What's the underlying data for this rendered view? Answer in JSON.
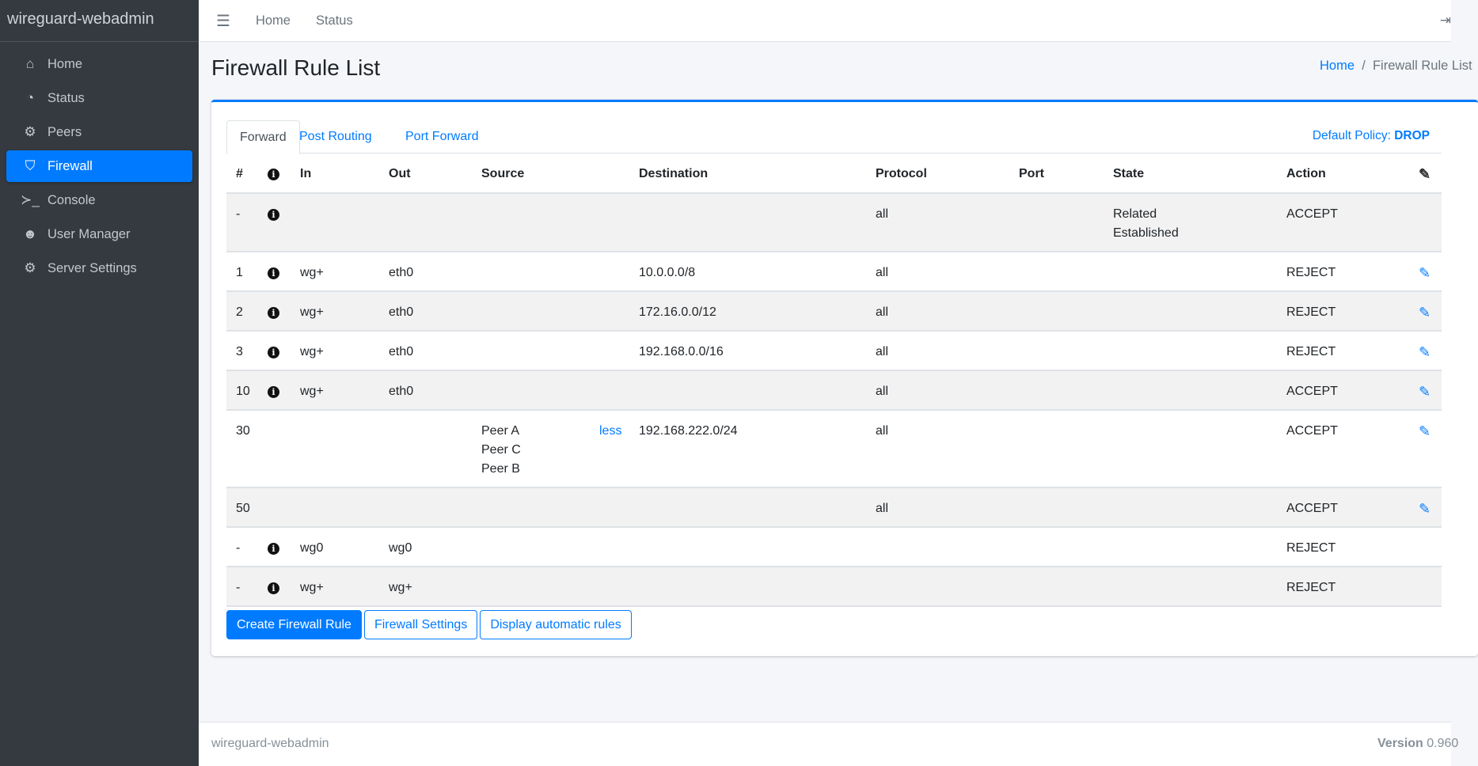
{
  "brand": "wireguard-webadmin",
  "sidebar": {
    "items": [
      {
        "label": "Home",
        "icon": "home-icon",
        "glyph": "⌂"
      },
      {
        "label": "Status",
        "icon": "gauge-icon",
        "glyph": "◔"
      },
      {
        "label": "Peers",
        "icon": "users-cog-icon",
        "glyph": "⚙"
      },
      {
        "label": "Firewall",
        "icon": "shield-icon",
        "glyph": "⛉",
        "active": true
      },
      {
        "label": "Console",
        "icon": "terminal-icon",
        "glyph": "≻_"
      },
      {
        "label": "User Manager",
        "icon": "users-icon",
        "glyph": "☻"
      },
      {
        "label": "Server Settings",
        "icon": "cogs-icon",
        "glyph": "⚙"
      }
    ]
  },
  "topbar": {
    "links": [
      "Home",
      "Status"
    ],
    "menu_icon": "☰",
    "logout_icon": "⇥"
  },
  "page": {
    "title": "Firewall Rule List",
    "breadcrumb": [
      "Home",
      "Firewall Rule List"
    ]
  },
  "tabs": [
    "Forward",
    "Post Routing",
    "Port Forward"
  ],
  "policy": {
    "label": "Default Policy:",
    "value": "DROP"
  },
  "table": {
    "headers": [
      "#",
      "",
      "In",
      "Out",
      "Source",
      "Destination",
      "Protocol",
      "Port",
      "State",
      "Action"
    ],
    "rows": [
      {
        "num": "-",
        "info": true,
        "in": "",
        "out": "",
        "source": [],
        "dest": "",
        "proto": "all",
        "port": "",
        "state": [
          "Related",
          "Established"
        ],
        "action": "ACCEPT",
        "edit": false
      },
      {
        "num": "1",
        "info": true,
        "in": "wg+",
        "out": "eth0",
        "source": [],
        "dest": "10.0.0.0/8",
        "proto": "all",
        "port": "",
        "state": [],
        "action": "REJECT",
        "edit": true
      },
      {
        "num": "2",
        "info": true,
        "in": "wg+",
        "out": "eth0",
        "source": [],
        "dest": "172.16.0.0/12",
        "proto": "all",
        "port": "",
        "state": [],
        "action": "REJECT",
        "edit": true
      },
      {
        "num": "3",
        "info": true,
        "in": "wg+",
        "out": "eth0",
        "source": [],
        "dest": "192.168.0.0/16",
        "proto": "all",
        "port": "",
        "state": [],
        "action": "REJECT",
        "edit": true
      },
      {
        "num": "10",
        "info": true,
        "in": "wg+",
        "out": "eth0",
        "source": [],
        "dest": "",
        "proto": "all",
        "port": "",
        "state": [],
        "action": "ACCEPT",
        "edit": true
      },
      {
        "num": "30",
        "info": false,
        "in": "",
        "out": "",
        "source": [
          "Peer A",
          "Peer C",
          "Peer B"
        ],
        "source_toggle": "less",
        "dest": "192.168.222.0/24",
        "proto": "all",
        "port": "",
        "state": [],
        "action": "ACCEPT",
        "edit": true
      },
      {
        "num": "50",
        "info": false,
        "in": "",
        "out": "",
        "source": [],
        "dest": "",
        "proto": "all",
        "port": "",
        "state": [],
        "action": "ACCEPT",
        "edit": true
      },
      {
        "num": "-",
        "info": true,
        "in": "wg0",
        "out": "wg0",
        "source": [],
        "dest": "",
        "proto": "",
        "port": "",
        "state": [],
        "action": "REJECT",
        "edit": false
      },
      {
        "num": "-",
        "info": true,
        "in": "wg+",
        "out": "wg+",
        "source": [],
        "dest": "",
        "proto": "",
        "port": "",
        "state": [],
        "action": "REJECT",
        "edit": false
      }
    ]
  },
  "buttons": {
    "create": "Create Firewall Rule",
    "settings": "Firewall Settings",
    "auto": "Display automatic rules"
  },
  "footer": {
    "left": "wireguard-webadmin",
    "version_label": "Version",
    "version": "0.960"
  }
}
